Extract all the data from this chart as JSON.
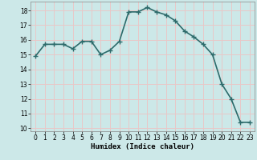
{
  "x": [
    0,
    1,
    2,
    3,
    4,
    5,
    6,
    7,
    8,
    9,
    10,
    11,
    12,
    13,
    14,
    15,
    16,
    17,
    18,
    19,
    20,
    21,
    22,
    23
  ],
  "y": [
    14.9,
    15.7,
    15.7,
    15.7,
    15.4,
    15.9,
    15.9,
    15.0,
    15.3,
    15.9,
    17.9,
    17.9,
    18.2,
    17.9,
    17.7,
    17.3,
    16.6,
    16.2,
    15.7,
    15.0,
    13.0,
    12.0,
    10.4,
    10.4
  ],
  "xlabel": "Humidex (Indice chaleur)",
  "ylim": [
    9.8,
    18.6
  ],
  "xlim": [
    -0.5,
    23.5
  ],
  "yticks": [
    10,
    11,
    12,
    13,
    14,
    15,
    16,
    17,
    18
  ],
  "xticks": [
    0,
    1,
    2,
    3,
    4,
    5,
    6,
    7,
    8,
    9,
    10,
    11,
    12,
    13,
    14,
    15,
    16,
    17,
    18,
    19,
    20,
    21,
    22,
    23
  ],
  "line_color": "#2d6b6b",
  "marker": "+",
  "marker_size": 4.0,
  "bg_color": "#cce8e8",
  "grid_color": "#e8c8c8",
  "xlabel_fontsize": 6.5,
  "tick_fontsize": 5.5,
  "linewidth": 1.2
}
